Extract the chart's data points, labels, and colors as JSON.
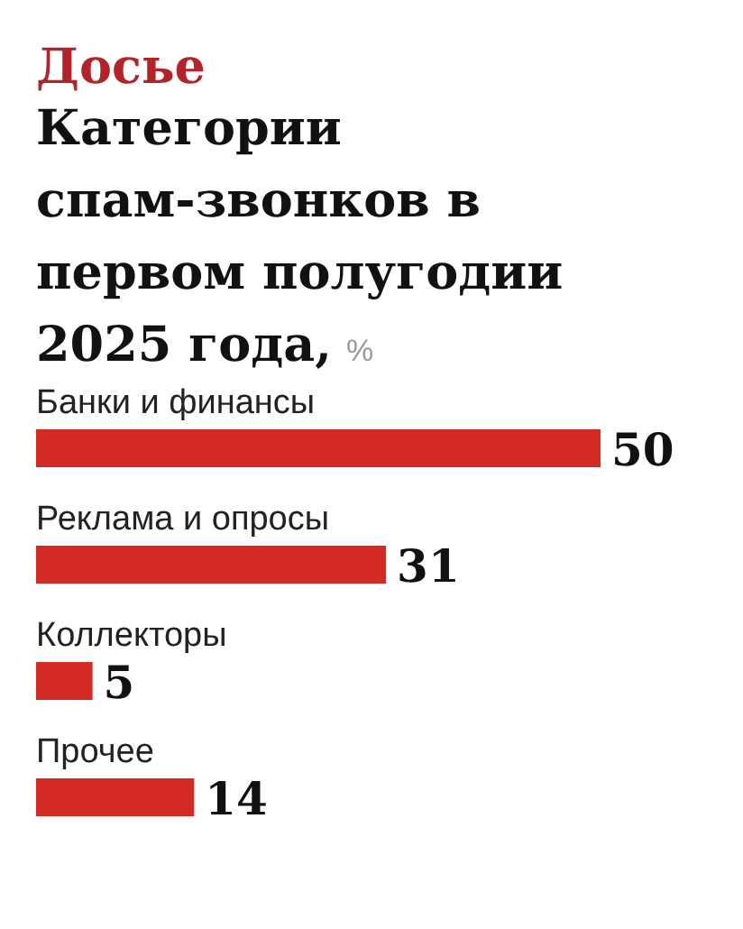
{
  "chart_data": {
    "type": "bar",
    "orientation": "horizontal",
    "title": "Категории спам-звонков в первом полугодии 2025 года,",
    "xlabel": "%",
    "annotations": [
      "Досье"
    ],
    "categories": [
      "Банки и финансы",
      "Реклама и опросы",
      "Коллекторы",
      "Прочее"
    ],
    "values": [
      50,
      31,
      5,
      14
    ],
    "color": "#d42a24",
    "data_labels": true
  }
}
